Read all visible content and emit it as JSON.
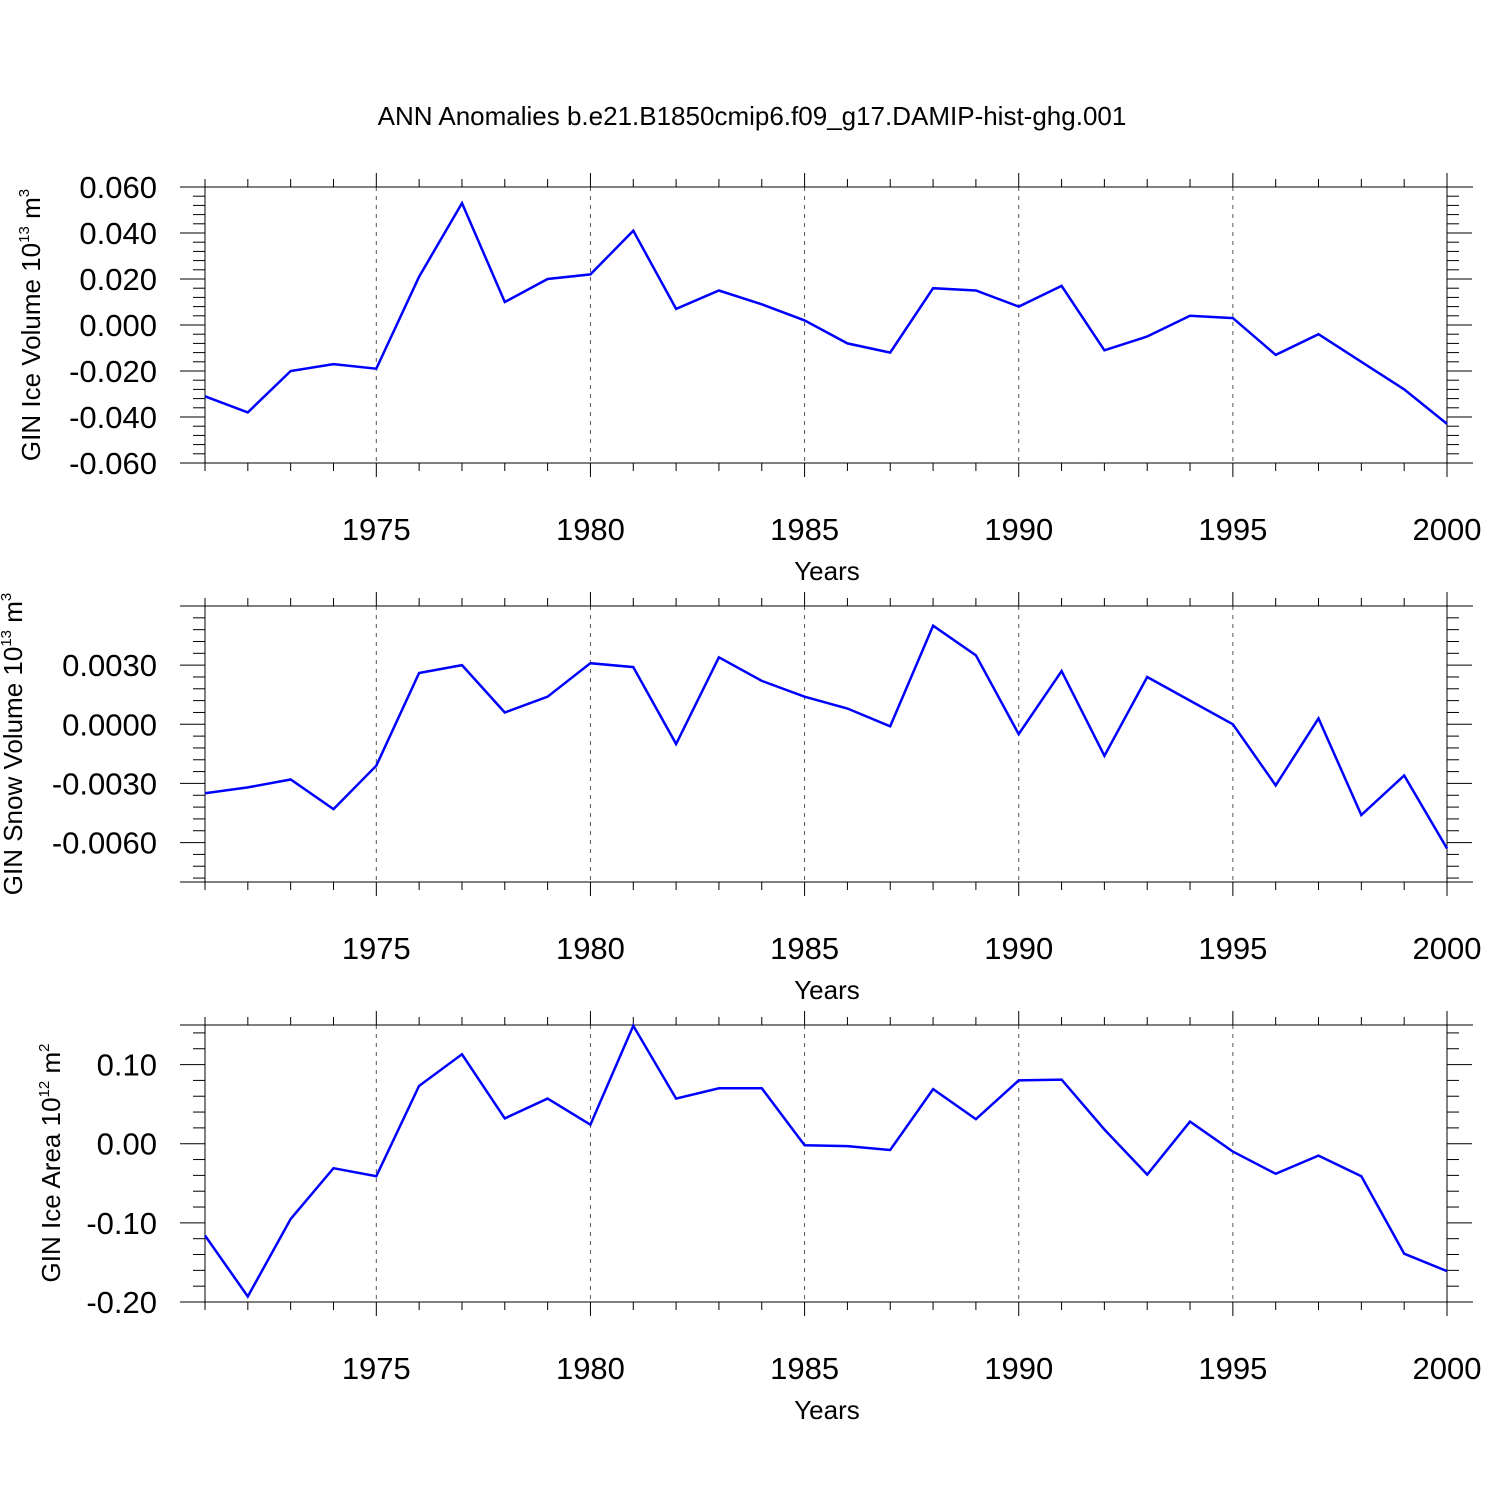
{
  "figure": {
    "title": "ANN Anomalies b.e21.B1850cmip6.f09_g17.DAMIP-hist-ghg.001"
  },
  "style": {
    "line_color": "#0000ff",
    "axis_color": "#000000",
    "grid_color": "#555555"
  },
  "chart_data": [
    {
      "type": "line",
      "name": "ice-volume",
      "title": "",
      "xlabel": "Years",
      "ylabel": {
        "text": "GIN Ice Volume 10",
        "exp": "13",
        "unit": " m",
        "unit_exp": "3"
      },
      "xlim": [
        1971,
        2000
      ],
      "ylim": [
        -0.06,
        0.06
      ],
      "xticks": [
        1975,
        1980,
        1985,
        1990,
        1995,
        2000
      ],
      "xtick_labels": [
        "1975",
        "1980",
        "1985",
        "1990",
        "1995",
        "2000"
      ],
      "yticks": [
        0.06,
        0.04,
        0.02,
        0.0,
        -0.02,
        -0.04,
        -0.06
      ],
      "ytick_labels": [
        "0.060",
        "0.040",
        "0.020",
        "0.000",
        "-0.020",
        "-0.040",
        "-0.060"
      ],
      "grid": "x-dashed",
      "x": [
        1971,
        1972,
        1973,
        1974,
        1975,
        1976,
        1977,
        1978,
        1979,
        1980,
        1981,
        1982,
        1983,
        1984,
        1985,
        1986,
        1987,
        1988,
        1989,
        1990,
        1991,
        1992,
        1993,
        1994,
        1995,
        1996,
        1997,
        1998,
        1999,
        2000
      ],
      "values": [
        -0.031,
        -0.038,
        -0.02,
        -0.017,
        -0.019,
        0.021,
        0.053,
        0.01,
        0.02,
        0.022,
        0.041,
        0.007,
        0.015,
        0.009,
        0.002,
        -0.008,
        -0.012,
        0.016,
        0.015,
        0.008,
        0.017,
        -0.011,
        -0.005,
        0.004,
        0.003,
        -0.013,
        -0.004,
        -0.016,
        -0.028,
        -0.043
      ]
    },
    {
      "type": "line",
      "name": "snow-volume",
      "title": "",
      "xlabel": "Years",
      "ylabel": {
        "text": "GIN Snow Volume 10",
        "exp": "13",
        "unit": " m",
        "unit_exp": "3"
      },
      "xlim": [
        1971,
        2000
      ],
      "ylim": [
        -0.008,
        0.006
      ],
      "xticks": [
        1975,
        1980,
        1985,
        1990,
        1995,
        2000
      ],
      "xtick_labels": [
        "1975",
        "1980",
        "1985",
        "1990",
        "1995",
        "2000"
      ],
      "yticks": [
        0.003,
        0.0,
        -0.003,
        -0.006
      ],
      "ytick_labels": [
        "0.0030",
        "0.0000",
        "-0.0030",
        "-0.0060"
      ],
      "grid": "x-dashed",
      "x": [
        1971,
        1972,
        1973,
        1974,
        1975,
        1976,
        1977,
        1978,
        1979,
        1980,
        1981,
        1982,
        1983,
        1984,
        1985,
        1986,
        1987,
        1988,
        1989,
        1990,
        1991,
        1992,
        1993,
        1994,
        1995,
        1996,
        1997,
        1998,
        1999,
        2000
      ],
      "values": [
        -0.0035,
        -0.0032,
        -0.0028,
        -0.0043,
        -0.0021,
        0.0026,
        0.003,
        0.0006,
        0.0014,
        0.0031,
        0.0029,
        -0.001,
        0.0034,
        0.0022,
        0.0014,
        0.0008,
        -0.0001,
        0.005,
        0.0035,
        -0.0005,
        0.0027,
        -0.0016,
        0.0024,
        0.0012,
        0.0,
        -0.0031,
        0.0003,
        -0.0046,
        -0.0026,
        -0.0063
      ]
    },
    {
      "type": "line",
      "name": "ice-area",
      "title": "",
      "xlabel": "Years",
      "ylabel": {
        "text": "GIN Ice Area 10",
        "exp": "12",
        "unit": " m",
        "unit_exp": "2"
      },
      "xlim": [
        1971,
        2000
      ],
      "ylim": [
        -0.2,
        0.15
      ],
      "xticks": [
        1975,
        1980,
        1985,
        1990,
        1995,
        2000
      ],
      "xtick_labels": [
        "1975",
        "1980",
        "1985",
        "1990",
        "1995",
        "2000"
      ],
      "yticks": [
        0.1,
        0.0,
        -0.1,
        -0.2
      ],
      "ytick_labels": [
        "0.10",
        "0.00",
        "-0.10",
        "-0.20"
      ],
      "grid": "x-dashed",
      "x": [
        1971,
        1972,
        1973,
        1974,
        1975,
        1976,
        1977,
        1978,
        1979,
        1980,
        1981,
        1982,
        1983,
        1984,
        1985,
        1986,
        1987,
        1988,
        1989,
        1990,
        1991,
        1992,
        1993,
        1994,
        1995,
        1996,
        1997,
        1998,
        1999,
        2000
      ],
      "values": [
        -0.116,
        -0.193,
        -0.095,
        -0.031,
        -0.041,
        0.073,
        0.113,
        0.032,
        0.057,
        0.024,
        0.149,
        0.057,
        0.07,
        0.07,
        -0.002,
        -0.003,
        -0.008,
        0.069,
        0.031,
        0.08,
        0.081,
        0.018,
        -0.039,
        0.028,
        -0.01,
        -0.038,
        -0.015,
        -0.041,
        -0.139,
        -0.161
      ]
    }
  ]
}
